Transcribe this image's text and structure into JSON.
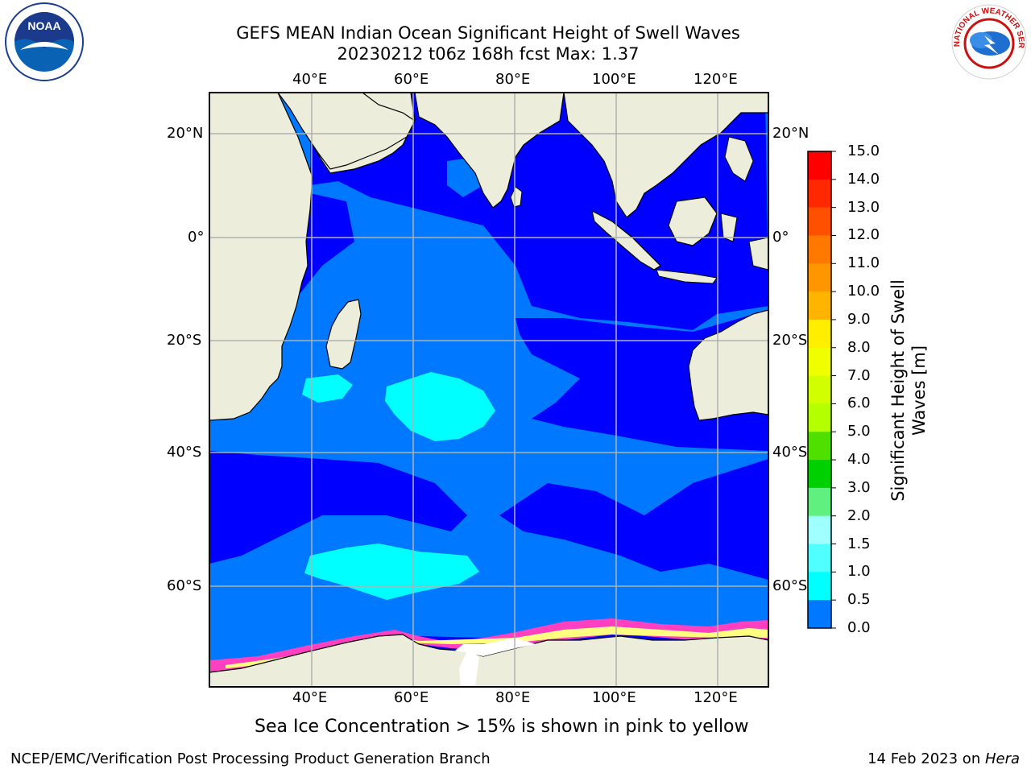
{
  "title": {
    "line1": "GEFS MEAN Indian Ocean Significant Height of Swell Waves",
    "line2": "20230212 t06z 168h fcst   Max: 1.37"
  },
  "logos": {
    "left": "NOAA",
    "right": "NATIONAL WEATHER SERVICE"
  },
  "map": {
    "lon_ticks": [
      "40°E",
      "60°E",
      "80°E",
      "100°E",
      "120°E"
    ],
    "lat_ticks_left": [
      "20°N",
      "0°",
      "20°S",
      "40°S",
      "60°S"
    ],
    "lat_ticks_right": [
      "20°N",
      "0°",
      "20°S",
      "40°S",
      "60°S"
    ],
    "colors": {
      "land": "#ededdc",
      "wave_0_0_5": "#0000ff",
      "wave_0_5_1_0": "#0078ff",
      "wave_1_0_1_5": "#00ffff",
      "sea_ice_low": "#ff40c0",
      "sea_ice_high": "#ffff80",
      "grid": "#b0b0b0"
    }
  },
  "colorbar": {
    "title_line1": "Significant Height of Swell",
    "title_line2": "Waves [m]",
    "labels": [
      "15.0",
      "14.0",
      "13.0",
      "12.0",
      "11.0",
      "10.0",
      "9.0",
      "8.0",
      "7.0",
      "6.0",
      "5.0",
      "4.0",
      "3.0",
      "2.0",
      "1.5",
      "1.0",
      "0.5",
      "0.0"
    ],
    "colors": [
      "#ff0000",
      "#ff2800",
      "#ff5000",
      "#ff7800",
      "#ff9600",
      "#ffb400",
      "#ffee00",
      "#f0ff00",
      "#d2ff00",
      "#b4ff00",
      "#50e000",
      "#00d000",
      "#60f080",
      "#a0ffff",
      "#50ffff",
      "#00ffff",
      "#0078ff",
      "#0000ff"
    ]
  },
  "caption": "Sea Ice Concentration > 15% is shown in pink to yellow",
  "footer": {
    "left": "NCEP/EMC/Verification Post Processing Product Generation Branch",
    "right_prefix": "14 Feb 2023 on ",
    "right_host": "Hera"
  }
}
